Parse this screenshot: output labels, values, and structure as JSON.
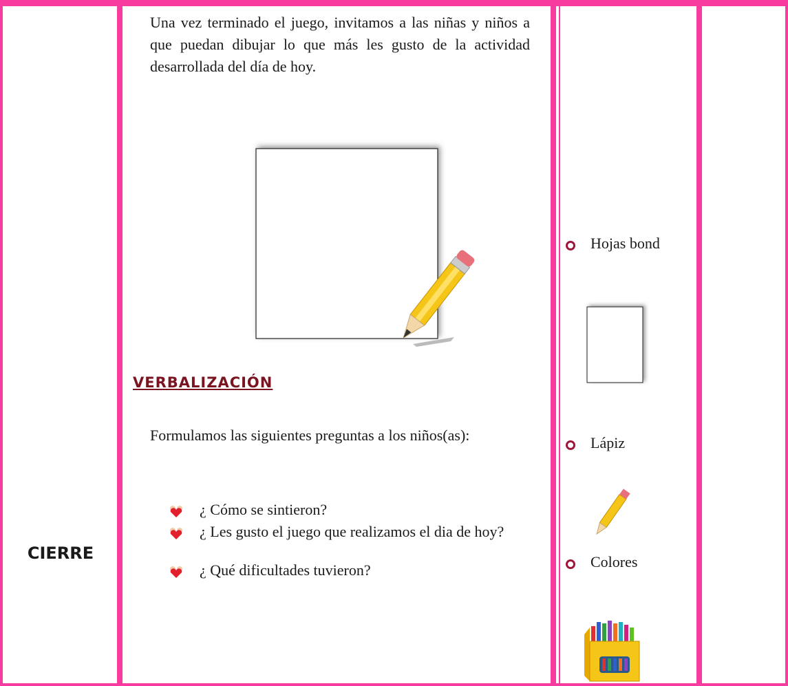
{
  "row": {
    "phase": "CIERRE",
    "activity": {
      "paragraph": "Una vez terminado el juego, invitamos a las niñas y niños a que puedan dibujar lo que más les gusto de la actividad desarrollada del día de hoy.",
      "heading": "VERBALIZACIÓN",
      "intro": "Formulamos las siguientes preguntas a los niños(as):",
      "questions": [
        "¿ Cómo se sintieron?",
        "¿ Les gusto el juego que realizamos el dia de hoy?",
        "¿ Qué dificultades tuvieron?"
      ]
    },
    "materials": [
      "Hojas bond",
      "Lápiz",
      "Colores"
    ]
  }
}
